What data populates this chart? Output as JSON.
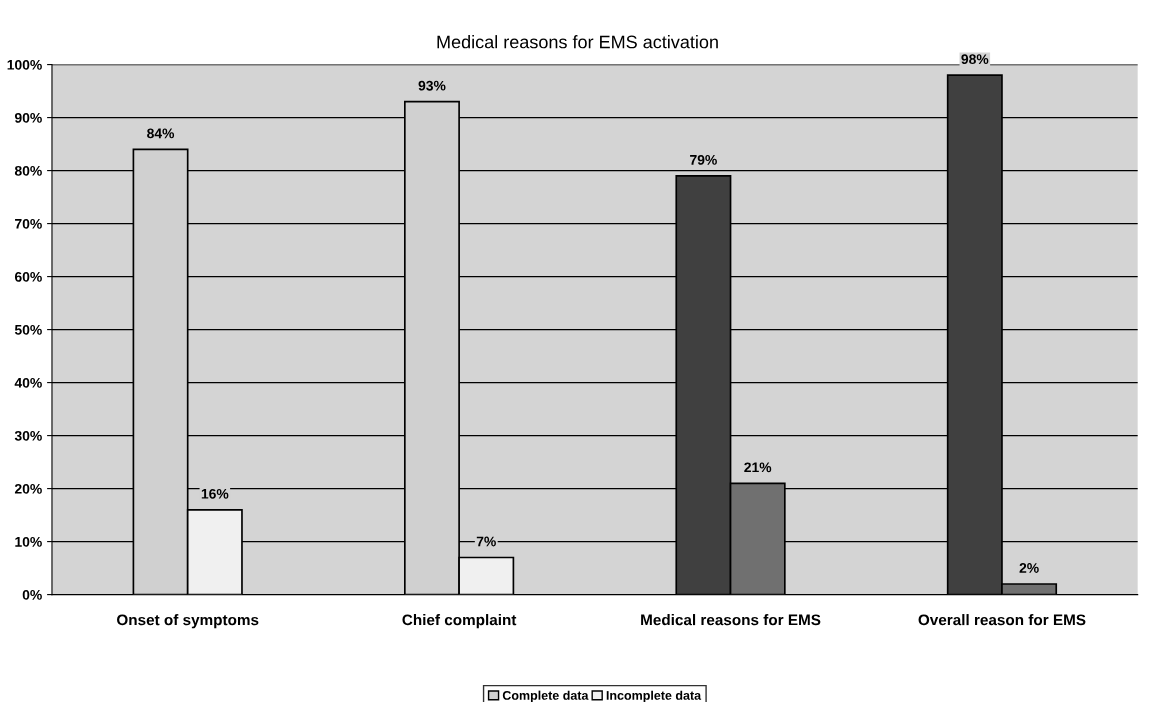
{
  "chart_data": {
    "type": "bar",
    "title": "Medical reasons for EMS activation",
    "categories": [
      "Onset of symptoms",
      "Chief complaint",
      "Medical reasons for EMS",
      "Overall reason for EMS"
    ],
    "series": [
      {
        "name": "Complete data",
        "color": "#d0d0d0",
        "colors": [
          "#d0d0d0",
          "#d0d0d0",
          "#404040",
          "#404040"
        ],
        "values": [
          84,
          93,
          79,
          98
        ],
        "value_labels": [
          "84%",
          "93%",
          "79%",
          "98%"
        ]
      },
      {
        "name": "Incomplete data",
        "color": "#f0f0f0",
        "colors": [
          "#f0f0f0",
          "#f0f0f0",
          "#707070",
          "#707070"
        ],
        "values": [
          16,
          7,
          21,
          2
        ],
        "value_labels": [
          "16%",
          "7%",
          "21%",
          "2%"
        ]
      }
    ],
    "ylim": [
      0,
      100
    ],
    "yticks": [
      {
        "value": 0,
        "label": "0%"
      },
      {
        "value": 10,
        "label": "10%"
      },
      {
        "value": 20,
        "label": "20%"
      },
      {
        "value": 30,
        "label": "30%"
      },
      {
        "value": 40,
        "label": "40%"
      },
      {
        "value": 50,
        "label": "50%"
      },
      {
        "value": 60,
        "label": "60%"
      },
      {
        "value": 70,
        "label": "70%"
      },
      {
        "value": 80,
        "label": "80%"
      },
      {
        "value": 90,
        "label": "90%"
      },
      {
        "value": 100,
        "label": "100%"
      }
    ],
    "grid": "y",
    "legend": "bottom"
  }
}
